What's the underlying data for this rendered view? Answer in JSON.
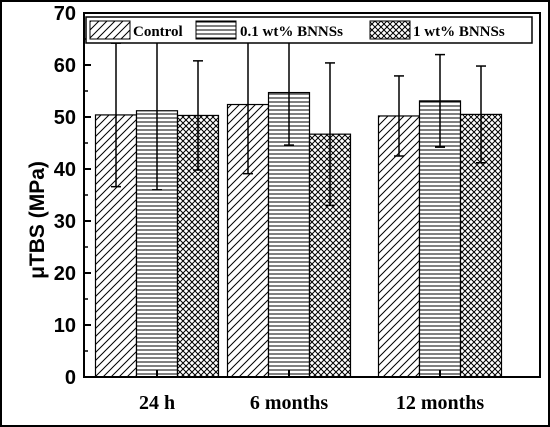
{
  "chart_data": {
    "type": "bar",
    "categories": [
      "24 h",
      "6 months",
      "12 months"
    ],
    "series": [
      {
        "name": "Control",
        "values": [
          50.4,
          52.4,
          50.2
        ],
        "errors": [
          13.8,
          13.3,
          7.7
        ],
        "pattern": "diagonal"
      },
      {
        "name": "0.1 wt% BNNSs",
        "values": [
          51.2,
          54.7,
          53.1
        ],
        "errors": [
          15.2,
          10.1,
          8.9
        ],
        "pattern": "horizontal"
      },
      {
        "name": "1 wt% BNNSs",
        "values": [
          50.3,
          46.7,
          50.5
        ],
        "errors": [
          10.5,
          13.7,
          9.3
        ],
        "pattern": "crosshatch"
      }
    ],
    "ylabel": "μTBS (MPa)",
    "xlabel": "",
    "title": "",
    "ylim": [
      0,
      70
    ],
    "yticks": [
      0,
      10,
      20,
      30,
      40,
      50,
      60,
      70
    ],
    "grid": false,
    "legend_position": "top"
  }
}
